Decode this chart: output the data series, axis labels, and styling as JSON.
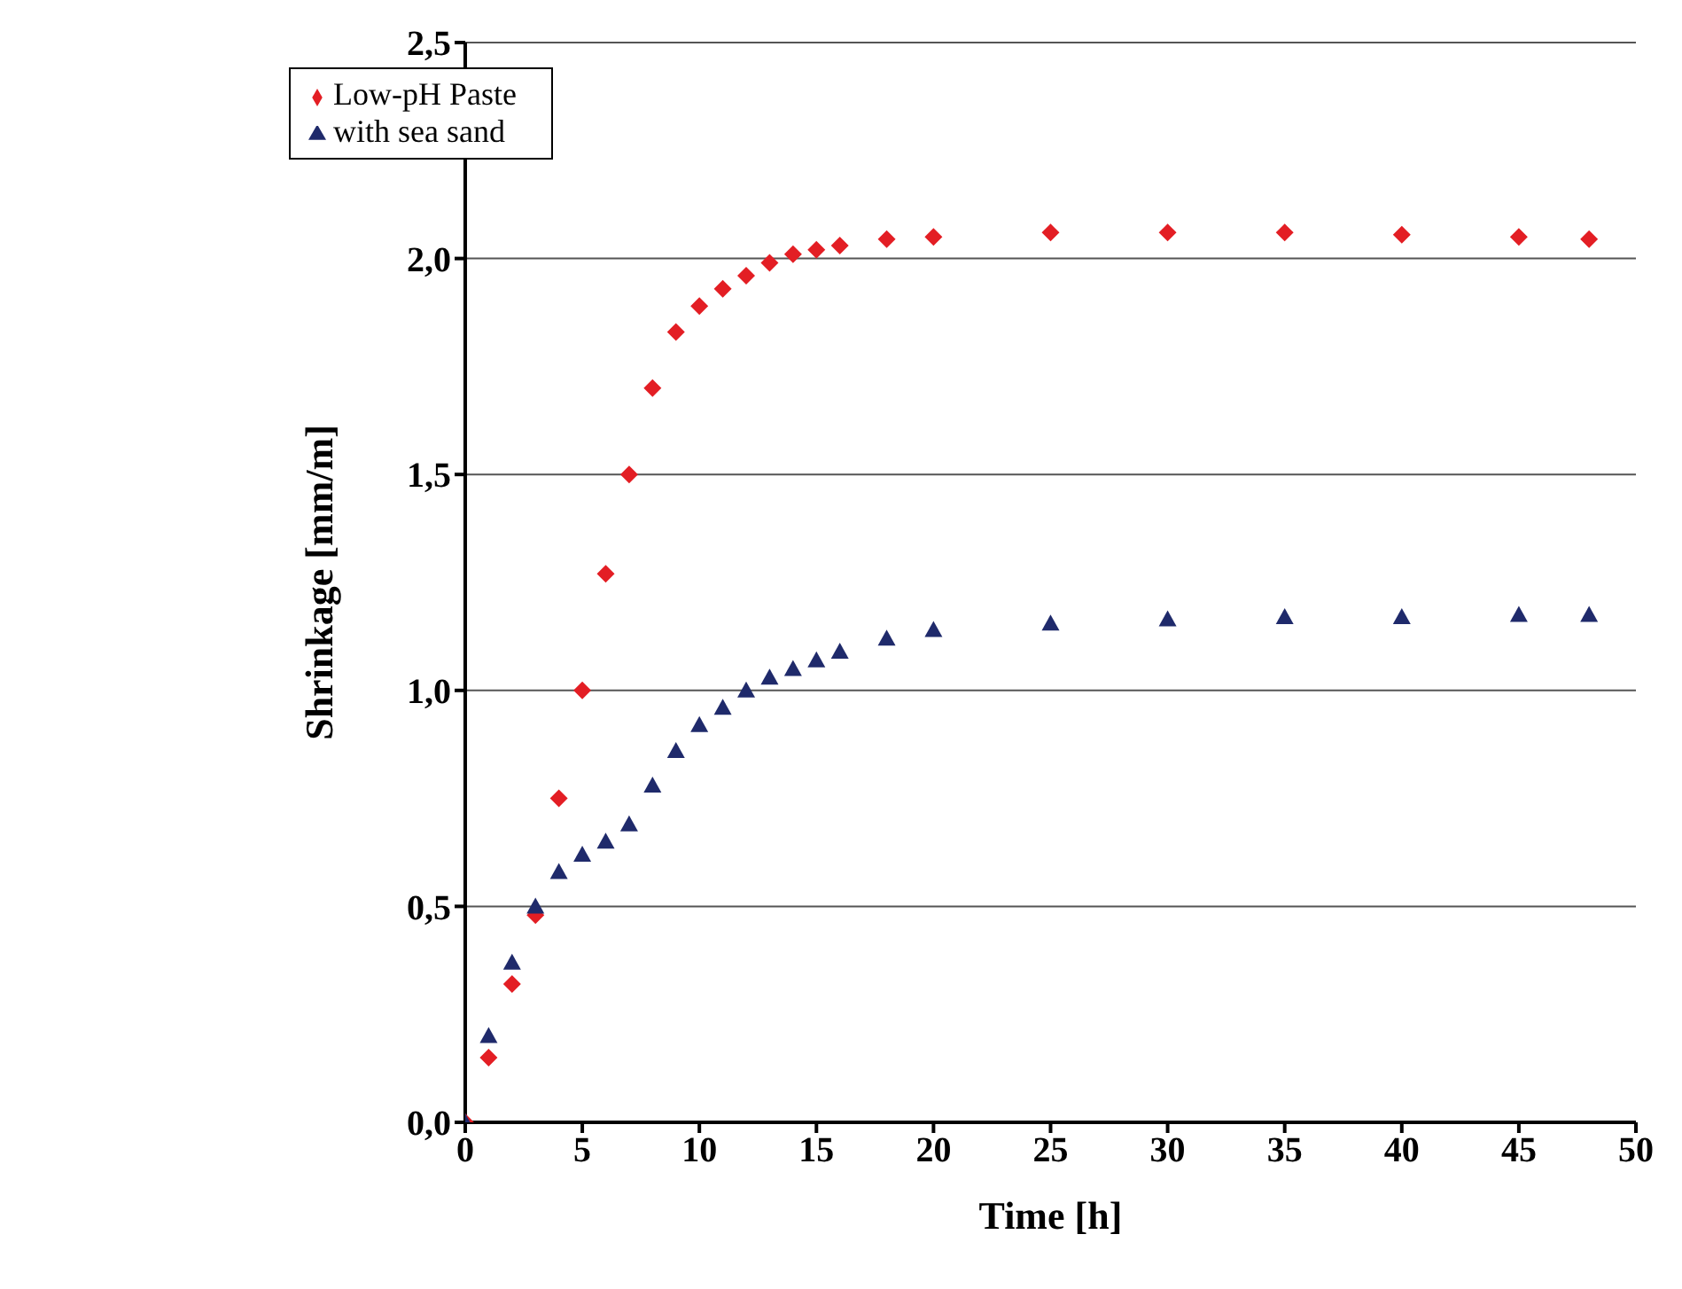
{
  "chart_data": {
    "type": "scatter",
    "xlabel": "Time [h]",
    "ylabel": "Shrinkage [mm/m]",
    "xlim": [
      0,
      50
    ],
    "xticks": [
      0,
      5,
      10,
      15,
      20,
      25,
      30,
      35,
      40,
      45,
      50
    ],
    "ylim": [
      0,
      2.5
    ],
    "yticks": [
      {
        "value": 0,
        "label": "0,0"
      },
      {
        "value": 0.5,
        "label": "0,5"
      },
      {
        "value": 1,
        "label": "1,0"
      },
      {
        "value": 1.5,
        "label": "1,5"
      },
      {
        "value": 2,
        "label": "2,0"
      },
      {
        "value": 2.5,
        "label": "2,5"
      }
    ],
    "grid": "y",
    "legend": "top left",
    "series": [
      {
        "name": "Low-pH Paste",
        "color": "#e31e24",
        "marker": "diamond",
        "x": [
          0,
          1,
          2,
          3,
          4,
          5,
          6,
          7,
          8,
          9,
          10,
          11,
          12,
          13,
          14,
          15,
          16,
          18,
          20,
          25,
          30,
          35,
          40,
          45,
          48
        ],
        "values": [
          0,
          0.15,
          0.32,
          0.48,
          0.75,
          1.0,
          1.27,
          1.5,
          1.7,
          1.83,
          1.89,
          1.93,
          1.96,
          1.99,
          2.01,
          2.02,
          2.03,
          2.045,
          2.05,
          2.06,
          2.06,
          2.06,
          2.055,
          2.05,
          2.045
        ]
      },
      {
        "name": "with sea sand",
        "color": "#1f2a6b",
        "marker": "triangle",
        "x": [
          0,
          1,
          2,
          3,
          4,
          5,
          6,
          7,
          8,
          9,
          10,
          11,
          12,
          13,
          14,
          15,
          16,
          18,
          20,
          25,
          30,
          35,
          40,
          45,
          48
        ],
        "values": [
          0,
          0.2,
          0.37,
          0.5,
          0.58,
          0.62,
          0.65,
          0.69,
          0.78,
          0.86,
          0.92,
          0.96,
          1.0,
          1.03,
          1.05,
          1.07,
          1.09,
          1.12,
          1.14,
          1.155,
          1.165,
          1.17,
          1.17,
          1.175,
          1.175
        ]
      }
    ]
  }
}
